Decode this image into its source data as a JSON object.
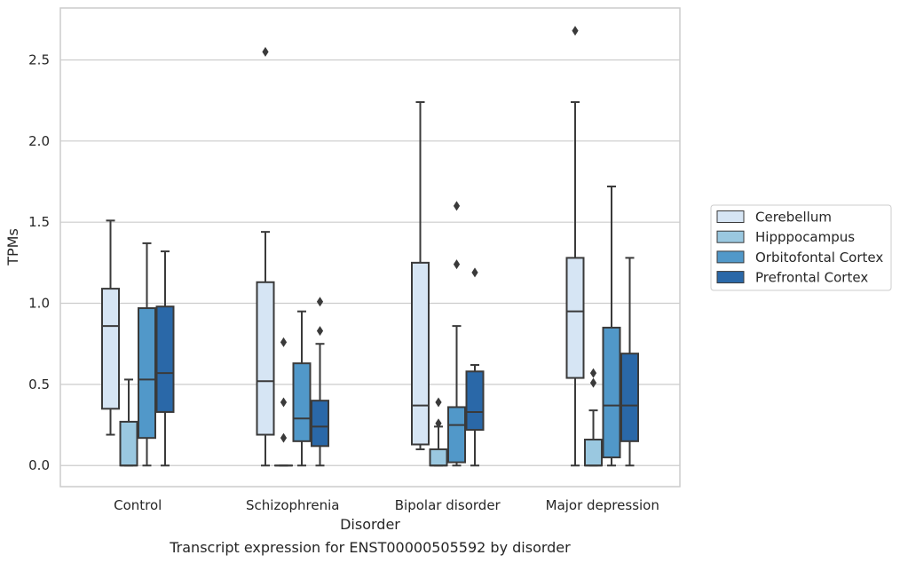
{
  "chart_data": {
    "type": "box",
    "caption": "Transcript expression for ENST00000505592 by disorder",
    "xlabel": "Disorder",
    "ylabel": "TPMs",
    "ylim": [
      -0.13,
      2.82
    ],
    "yticks": [
      0.0,
      0.5,
      1.0,
      1.5,
      2.0,
      2.5
    ],
    "ytick_labels": [
      "0.0",
      "0.5",
      "1.0",
      "1.5",
      "2.0",
      "2.5"
    ],
    "categories": [
      "Control",
      "Schizophrenia",
      "Bipolar disorder",
      "Major depression"
    ],
    "grid": "horizontal",
    "legend_position": "right",
    "series": [
      {
        "name": "Cerebellum",
        "color": "#d6e5f4",
        "boxes": [
          {
            "whislo": 0.19,
            "q1": 0.35,
            "med": 0.86,
            "q3": 1.09,
            "whishi": 1.51,
            "fliers": []
          },
          {
            "whislo": 0.0,
            "q1": 0.19,
            "med": 0.52,
            "q3": 1.13,
            "whishi": 1.44,
            "fliers": [
              2.55
            ]
          },
          {
            "whislo": 0.1,
            "q1": 0.13,
            "med": 0.37,
            "q3": 1.25,
            "whishi": 2.24,
            "fliers": []
          },
          {
            "whislo": 0.0,
            "q1": 0.54,
            "med": 0.95,
            "q3": 1.28,
            "whishi": 2.24,
            "fliers": [
              2.68
            ]
          }
        ]
      },
      {
        "name": "Hipppocampus",
        "color": "#9ac8e0",
        "boxes": [
          {
            "whislo": 0.0,
            "q1": 0.0,
            "med": 0.0,
            "q3": 0.27,
            "whishi": 0.53,
            "fliers": []
          },
          {
            "whislo": 0.0,
            "q1": 0.0,
            "med": 0.0,
            "q3": 0.0,
            "whishi": 0.0,
            "fliers": [
              0.76,
              0.39,
              0.17
            ]
          },
          {
            "whislo": 0.0,
            "q1": 0.0,
            "med": 0.0,
            "q3": 0.1,
            "whishi": 0.24,
            "fliers": [
              0.39,
              0.26
            ]
          },
          {
            "whislo": 0.0,
            "q1": 0.0,
            "med": 0.0,
            "q3": 0.16,
            "whishi": 0.34,
            "fliers": [
              0.57,
              0.51
            ]
          }
        ]
      },
      {
        "name": "Orbitofontal Cortex",
        "color": "#5198c9",
        "boxes": [
          {
            "whislo": 0.0,
            "q1": 0.17,
            "med": 0.53,
            "q3": 0.97,
            "whishi": 1.37,
            "fliers": []
          },
          {
            "whislo": 0.0,
            "q1": 0.15,
            "med": 0.29,
            "q3": 0.63,
            "whishi": 0.95,
            "fliers": []
          },
          {
            "whislo": 0.0,
            "q1": 0.02,
            "med": 0.25,
            "q3": 0.36,
            "whishi": 0.86,
            "fliers": [
              1.6,
              1.24
            ]
          },
          {
            "whislo": 0.0,
            "q1": 0.05,
            "med": 0.37,
            "q3": 0.85,
            "whishi": 1.72,
            "fliers": []
          }
        ]
      },
      {
        "name": "Prefrontal Cortex",
        "color": "#2a68a8",
        "boxes": [
          {
            "whislo": 0.0,
            "q1": 0.33,
            "med": 0.57,
            "q3": 0.98,
            "whishi": 1.32,
            "fliers": []
          },
          {
            "whislo": 0.0,
            "q1": 0.12,
            "med": 0.24,
            "q3": 0.4,
            "whishi": 0.75,
            "fliers": [
              1.01,
              0.83
            ]
          },
          {
            "whislo": 0.0,
            "q1": 0.22,
            "med": 0.33,
            "q3": 0.58,
            "whishi": 0.62,
            "fliers": [
              1.19
            ]
          },
          {
            "whislo": 0.0,
            "q1": 0.15,
            "med": 0.37,
            "q3": 0.69,
            "whishi": 1.28,
            "fliers": []
          }
        ]
      }
    ]
  }
}
